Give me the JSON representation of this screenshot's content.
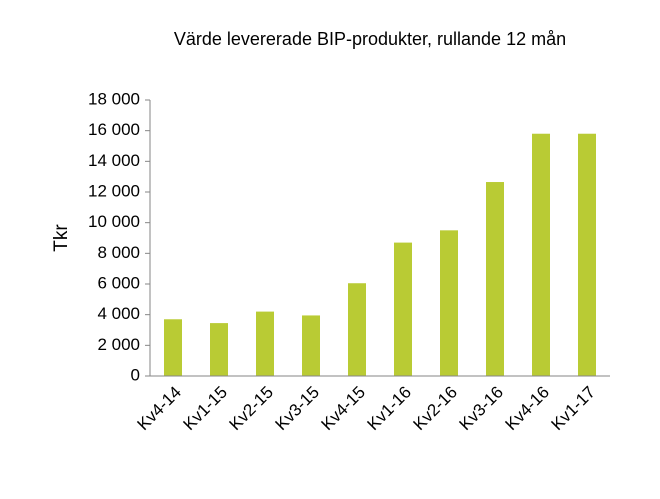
{
  "chart_data": {
    "type": "bar",
    "title": "Värde levererade BIP-produkter, rullande  12 mån",
    "y_label": "Tkr",
    "categories": [
      "Kv4-14",
      "Kv1-15",
      "Kv2-15",
      "Kv3-15",
      "Kv4-15",
      "Kv1-16",
      "Kv2-16",
      "Kv3-16",
      "Kv4-16",
      "Kv1-17"
    ],
    "values": [
      3700,
      3450,
      4200,
      3950,
      6050,
      8700,
      9500,
      12650,
      15800,
      15800
    ],
    "color": "#b9cb34",
    "ylim": [
      0,
      18000
    ],
    "yticks": [
      0,
      {
        "value": 2000,
        "label": "2 000"
      },
      {
        "value": 4000,
        "label": "4 000"
      },
      {
        "value": 6000,
        "label": "6 000"
      },
      {
        "value": 8000,
        "label": "8 000"
      },
      {
        "value": 10000,
        "label": "10 000"
      },
      {
        "value": 12000,
        "label": "12 000"
      },
      {
        "value": 14000,
        "label": "14 000"
      },
      {
        "value": 16000,
        "label": "16 000"
      },
      {
        "value": 18000,
        "label": "18 000"
      }
    ],
    "grid": false
  }
}
